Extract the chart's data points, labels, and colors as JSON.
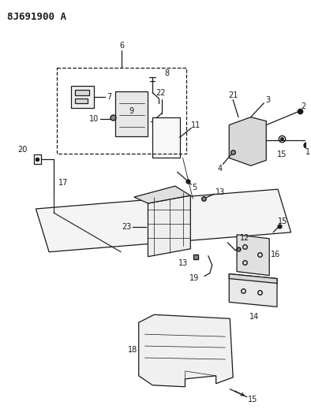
{
  "part_number": "8J691900 A",
  "bg": "#ffffff",
  "lc": "#1a1a1a",
  "fig_w": 3.94,
  "fig_h": 5.33,
  "dpi": 100
}
